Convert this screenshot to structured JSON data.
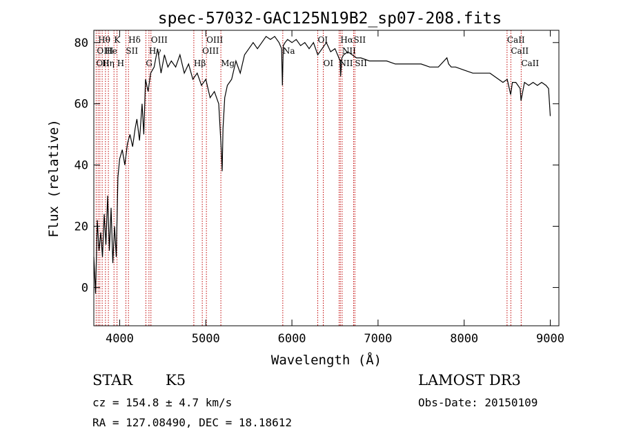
{
  "chart_data": {
    "type": "line",
    "title": "spec-57032-GAC125N19B2_sp07-208.fits",
    "xlabel": "Wavelength (Å)",
    "ylabel": "Flux (relative)",
    "xlim": [
      3700,
      9100
    ],
    "ylim": [
      -12.5,
      84
    ],
    "xticks": [
      4000,
      5000,
      6000,
      7000,
      8000,
      9000
    ],
    "yticks": [
      0,
      20,
      40,
      60,
      80
    ],
    "grid": false,
    "series": [
      {
        "name": "spectrum",
        "x": [
          3700,
          3720,
          3740,
          3760,
          3780,
          3800,
          3820,
          3840,
          3860,
          3880,
          3900,
          3920,
          3940,
          3960,
          3980,
          4000,
          4030,
          4060,
          4090,
          4120,
          4150,
          4180,
          4200,
          4230,
          4260,
          4280,
          4300,
          4330,
          4360,
          4400,
          4440,
          4480,
          4520,
          4560,
          4600,
          4650,
          4700,
          4750,
          4800,
          4850,
          4900,
          4950,
          5000,
          5050,
          5100,
          5150,
          5180,
          5190,
          5200,
          5220,
          5250,
          5300,
          5350,
          5400,
          5450,
          5500,
          5550,
          5600,
          5650,
          5700,
          5750,
          5800,
          5850,
          5880,
          5890,
          5900,
          5920,
          5950,
          6000,
          6050,
          6100,
          6150,
          6200,
          6250,
          6300,
          6350,
          6400,
          6450,
          6500,
          6560,
          6565,
          6580,
          6600,
          6650,
          6700,
          6750,
          6800,
          6900,
          7000,
          7100,
          7200,
          7300,
          7400,
          7500,
          7600,
          7700,
          7800,
          7820,
          7850,
          7900,
          8000,
          8100,
          8200,
          8300,
          8400,
          8450,
          8500,
          8540,
          8560,
          8600,
          8650,
          8660,
          8700,
          8750,
          8800,
          8850,
          8900,
          8950,
          8980,
          9000
        ],
        "values": [
          10,
          -2,
          22,
          12,
          18,
          10,
          24,
          14,
          30,
          12,
          26,
          8,
          20,
          10,
          36,
          42,
          45,
          40,
          47,
          50,
          46,
          52,
          55,
          48,
          60,
          50,
          68,
          64,
          70,
          72,
          78,
          70,
          76,
          72,
          74,
          72,
          76,
          70,
          73,
          68,
          70,
          66,
          68,
          62,
          64,
          60,
          45,
          38,
          52,
          62,
          66,
          68,
          74,
          70,
          76,
          78,
          80,
          78,
          80,
          82,
          81,
          82,
          80,
          78,
          66,
          79,
          80,
          81,
          80,
          81,
          79,
          80,
          78,
          80,
          76,
          78,
          80,
          77,
          78,
          74,
          69,
          75,
          76,
          77,
          76,
          75,
          75,
          74,
          74,
          74,
          73,
          73,
          73,
          73,
          72,
          72,
          75,
          73,
          72,
          72,
          71,
          70,
          70,
          70,
          68,
          67,
          68,
          63,
          67,
          67,
          65,
          61,
          67,
          66,
          67,
          66,
          67,
          66,
          65,
          56
        ]
      }
    ],
    "lines": [
      {
        "label": "OII",
        "x": 3727
      },
      {
        "label": "Hθ",
        "x": 3750
      },
      {
        "label": "Hη",
        "x": 3770
      },
      {
        "label": "Hε",
        "x": 3797
      },
      {
        "label": "OIII",
        "x": 3835
      },
      {
        "label": "Hζ",
        "x": 3869
      },
      {
        "label": "K",
        "x": 3934
      },
      {
        "label": "H",
        "x": 3969
      },
      {
        "label": "SII",
        "x": 4072
      },
      {
        "label": "Hδ",
        "x": 4102
      },
      {
        "label": "G",
        "x": 4304
      },
      {
        "label": "Hγ",
        "x": 4340
      },
      {
        "label": "OIII",
        "x": 4363
      },
      {
        "label": "Hβ",
        "x": 4861
      },
      {
        "label": "OIII",
        "x": 4959
      },
      {
        "label": "OIII",
        "x": 5007
      },
      {
        "label": "Mg",
        "x": 5175
      },
      {
        "label": "Na",
        "x": 5894
      },
      {
        "label": "OI",
        "x": 6300
      },
      {
        "label": "OI",
        "x": 6364
      },
      {
        "label": "NII",
        "x": 6548
      },
      {
        "label": "Hα",
        "x": 6563
      },
      {
        "label": "NII",
        "x": 6583
      },
      {
        "label": "SII",
        "x": 6716
      },
      {
        "label": "SII",
        "x": 6731
      },
      {
        "label": "CaII",
        "x": 8498
      },
      {
        "label": "CaII",
        "x": 8542
      },
      {
        "label": "CaII",
        "x": 8662
      }
    ],
    "line_label_rows": [
      {
        "text": "Hθ",
        "x": 3750,
        "row": 1
      },
      {
        "text": "K",
        "x": 3934,
        "row": 1
      },
      {
        "text": "Hδ",
        "x": 4102,
        "row": 1
      },
      {
        "text": "OIII",
        "x": 4363,
        "row": 1
      },
      {
        "text": "OIII",
        "x": 5007,
        "row": 1
      },
      {
        "text": "OI",
        "x": 6300,
        "row": 1
      },
      {
        "text": "Hα",
        "x": 6563,
        "row": 1
      },
      {
        "text": "SII",
        "x": 6716,
        "row": 1
      },
      {
        "text": "CaII",
        "x": 8498,
        "row": 1
      },
      {
        "text": "OIII",
        "x": 3735,
        "row": 2
      },
      {
        "text": "He",
        "x": 3830,
        "row": 2
      },
      {
        "text": "SII",
        "x": 4072,
        "row": 2
      },
      {
        "text": "Hγ",
        "x": 4340,
        "row": 2
      },
      {
        "text": "OIII",
        "x": 4959,
        "row": 2
      },
      {
        "text": "Na",
        "x": 5894,
        "row": 2
      },
      {
        "text": "NII",
        "x": 6583,
        "row": 2
      },
      {
        "text": "CaII",
        "x": 8542,
        "row": 2
      },
      {
        "text": "OII",
        "x": 3727,
        "row": 3
      },
      {
        "text": "Hη",
        "x": 3797,
        "row": 3
      },
      {
        "text": "H",
        "x": 3969,
        "row": 3
      },
      {
        "text": "G",
        "x": 4304,
        "row": 3
      },
      {
        "text": "Hβ",
        "x": 4861,
        "row": 3
      },
      {
        "text": "Mg",
        "x": 5175,
        "row": 3
      },
      {
        "text": "OI",
        "x": 6364,
        "row": 3
      },
      {
        "text": "NII",
        "x": 6548,
        "row": 3
      },
      {
        "text": "SII",
        "x": 6731,
        "row": 3
      },
      {
        "text": "CaII",
        "x": 8662,
        "row": 3
      }
    ]
  },
  "info": {
    "class": "STAR",
    "subclass": "K5",
    "survey": "LAMOST DR3",
    "cz": "cz = 154.8 ± 4.7 km/s",
    "obs_date": "Obs-Date: 20150109",
    "coords": "RA = 127.08490, DEC =  18.18612"
  }
}
